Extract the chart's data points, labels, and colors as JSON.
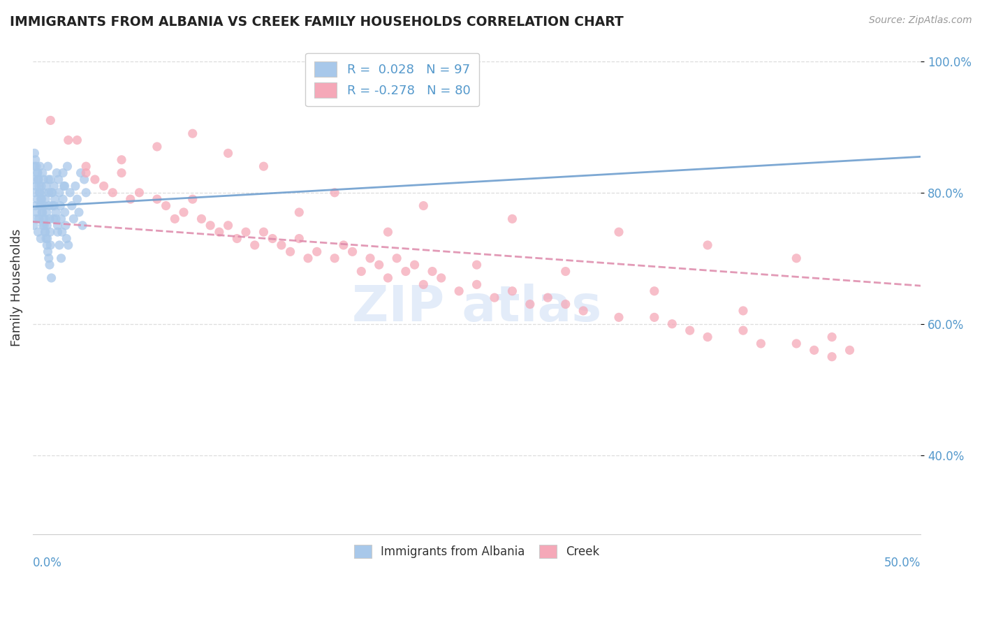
{
  "title": "IMMIGRANTS FROM ALBANIA VS CREEK FAMILY HOUSEHOLDS CORRELATION CHART",
  "source": "Source: ZipAtlas.com",
  "ylabel": "Family Households",
  "xmin": 0.0,
  "xmax": 50.0,
  "ymin": 28.0,
  "ymax": 103.0,
  "yticks": [
    40.0,
    60.0,
    80.0,
    100.0
  ],
  "ytick_labels": [
    "40.0%",
    "60.0%",
    "80.0%",
    "100.0%"
  ],
  "albania_R": 0.028,
  "albania_N": 97,
  "creek_R": -0.278,
  "creek_N": 80,
  "albania_color": "#a8c8ea",
  "creek_color": "#f5a8b8",
  "albania_trend_color": "#6699cc",
  "creek_trend_color": "#dd88aa",
  "background_color": "#ffffff",
  "grid_color": "#dddddd",
  "watermark_color": "#ccddf5",
  "label_color": "#5599cc",
  "albania_scatter_x": [
    0.05,
    0.08,
    0.1,
    0.12,
    0.15,
    0.18,
    0.2,
    0.22,
    0.25,
    0.28,
    0.3,
    0.32,
    0.35,
    0.38,
    0.4,
    0.42,
    0.45,
    0.48,
    0.5,
    0.52,
    0.55,
    0.58,
    0.6,
    0.62,
    0.65,
    0.68,
    0.7,
    0.72,
    0.75,
    0.78,
    0.8,
    0.82,
    0.85,
    0.88,
    0.9,
    0.92,
    0.95,
    0.98,
    1.0,
    1.05,
    1.1,
    1.15,
    1.2,
    1.25,
    1.3,
    1.35,
    1.4,
    1.45,
    1.5,
    1.55,
    1.6,
    1.65,
    1.7,
    1.75,
    1.8,
    1.85,
    1.9,
    1.95,
    2.0,
    2.1,
    2.2,
    2.3,
    2.4,
    2.5,
    2.6,
    2.7,
    2.8,
    2.9,
    3.0,
    0.1,
    0.2,
    0.3,
    0.4,
    0.5,
    0.6,
    0.7,
    0.8,
    0.9,
    1.0,
    1.1,
    1.2,
    1.3,
    1.4,
    1.5,
    1.6,
    1.7,
    1.8,
    0.15,
    0.25,
    0.35,
    0.45,
    0.55,
    0.65,
    0.75,
    0.85,
    0.95,
    1.05
  ],
  "albania_scatter_y": [
    75,
    82,
    84,
    80,
    78,
    76,
    81,
    77,
    79,
    83,
    74,
    82,
    76,
    80,
    84,
    78,
    73,
    81,
    79,
    77,
    83,
    75,
    82,
    80,
    78,
    76,
    74,
    79,
    81,
    77,
    75,
    73,
    84,
    82,
    80,
    78,
    76,
    74,
    72,
    80,
    78,
    76,
    81,
    79,
    77,
    83,
    75,
    82,
    80,
    78,
    76,
    74,
    79,
    81,
    77,
    75,
    73,
    84,
    72,
    80,
    78,
    76,
    81,
    79,
    77,
    83,
    75,
    82,
    80,
    86,
    84,
    82,
    80,
    78,
    76,
    74,
    72,
    70,
    82,
    80,
    78,
    76,
    74,
    72,
    70,
    83,
    81,
    85,
    83,
    81,
    79,
    77,
    75,
    73,
    71,
    69,
    67
  ],
  "creek_scatter_x": [
    1.0,
    2.5,
    3.0,
    3.5,
    4.0,
    4.5,
    5.0,
    5.5,
    6.0,
    7.0,
    7.5,
    8.0,
    8.5,
    9.0,
    9.5,
    10.0,
    10.5,
    11.0,
    11.5,
    12.0,
    12.5,
    13.0,
    13.5,
    14.0,
    14.5,
    15.0,
    15.5,
    16.0,
    17.0,
    17.5,
    18.0,
    18.5,
    19.0,
    19.5,
    20.0,
    20.5,
    21.0,
    21.5,
    22.0,
    22.5,
    23.0,
    24.0,
    25.0,
    26.0,
    27.0,
    28.0,
    29.0,
    30.0,
    31.0,
    33.0,
    35.0,
    36.0,
    37.0,
    38.0,
    40.0,
    41.0,
    43.0,
    44.0,
    45.0,
    46.0,
    3.0,
    5.0,
    7.0,
    9.0,
    11.0,
    13.0,
    17.0,
    22.0,
    27.0,
    33.0,
    38.0,
    43.0,
    2.0,
    15.0,
    25.0,
    35.0,
    45.0,
    20.0,
    30.0,
    40.0
  ],
  "creek_scatter_y": [
    91,
    88,
    84,
    82,
    81,
    80,
    83,
    79,
    80,
    79,
    78,
    76,
    77,
    79,
    76,
    75,
    74,
    75,
    73,
    74,
    72,
    74,
    73,
    72,
    71,
    73,
    70,
    71,
    70,
    72,
    71,
    68,
    70,
    69,
    67,
    70,
    68,
    69,
    66,
    68,
    67,
    65,
    66,
    64,
    65,
    63,
    64,
    63,
    62,
    61,
    61,
    60,
    59,
    58,
    59,
    57,
    57,
    56,
    55,
    56,
    83,
    85,
    87,
    89,
    86,
    84,
    80,
    78,
    76,
    74,
    72,
    70,
    88,
    77,
    69,
    65,
    58,
    74,
    68,
    62
  ]
}
